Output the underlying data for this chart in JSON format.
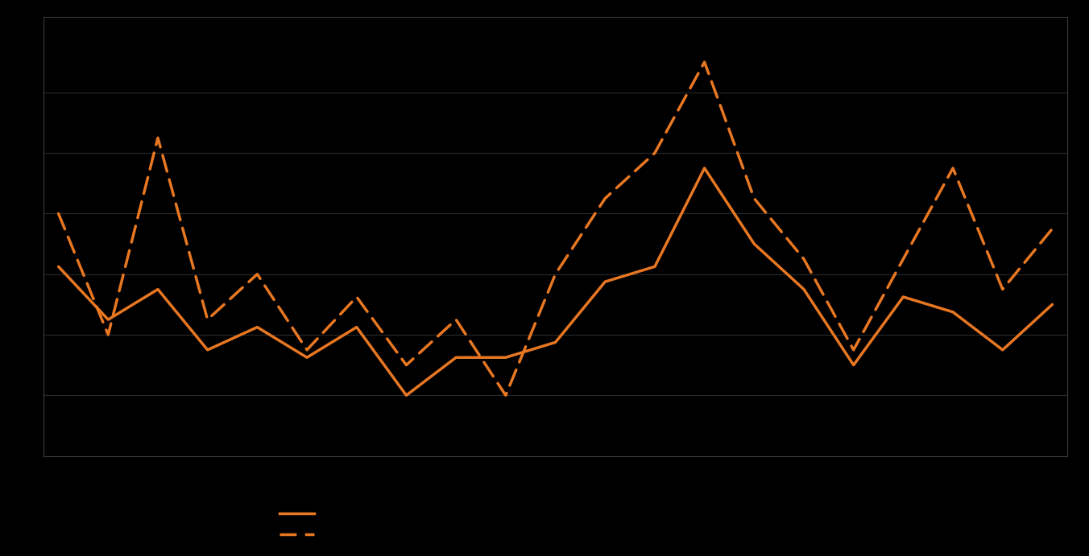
{
  "solid_line": [
    35,
    28,
    32,
    24,
    27,
    23,
    27,
    18,
    23,
    23,
    25,
    33,
    35,
    48,
    38,
    32,
    22,
    31,
    29,
    24,
    30
  ],
  "dashed_line": [
    42,
    26,
    52,
    28,
    34,
    24,
    31,
    22,
    28,
    18,
    34,
    44,
    50,
    62,
    44,
    36,
    24,
    36,
    48,
    32,
    40
  ],
  "line_color": "#e87722",
  "background_color": "#000000",
  "grid_color": "#2a2a2a",
  "ylim": [
    10,
    68
  ],
  "yticks": [
    18,
    26,
    34,
    42,
    50,
    58
  ],
  "n_points": 21,
  "legend_solid_label": "",
  "legend_dashed_label": ""
}
